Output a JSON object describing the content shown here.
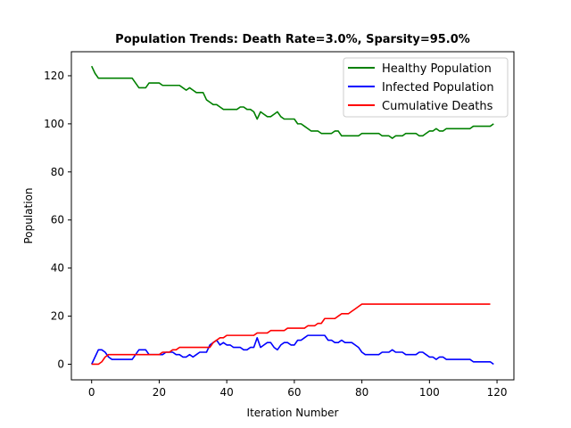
{
  "chart_data": {
    "type": "line",
    "title": "Population Trends: Death Rate=3.0%, Sparsity=95.0%",
    "xlabel": "Iteration Number",
    "ylabel": "Population",
    "xlim": [
      -6,
      125
    ],
    "ylim": [
      -6.5,
      130
    ],
    "xticks": [
      0,
      20,
      40,
      60,
      80,
      100,
      120
    ],
    "yticks": [
      0,
      20,
      40,
      60,
      80,
      100,
      120
    ],
    "grid": false,
    "legend_position": "top-right",
    "series": [
      {
        "name": "Healthy Population",
        "color": "#008000",
        "x": [
          0,
          1,
          2,
          3,
          4,
          5,
          6,
          7,
          8,
          9,
          10,
          11,
          12,
          13,
          14,
          15,
          16,
          17,
          18,
          19,
          20,
          21,
          22,
          23,
          24,
          25,
          26,
          27,
          28,
          29,
          30,
          31,
          32,
          33,
          34,
          35,
          36,
          37,
          38,
          39,
          40,
          41,
          42,
          43,
          44,
          45,
          46,
          47,
          48,
          49,
          50,
          51,
          52,
          53,
          54,
          55,
          56,
          57,
          58,
          59,
          60,
          61,
          62,
          63,
          64,
          65,
          66,
          67,
          68,
          69,
          70,
          71,
          72,
          73,
          74,
          75,
          76,
          77,
          78,
          79,
          80,
          81,
          82,
          83,
          84,
          85,
          86,
          87,
          88,
          89,
          90,
          91,
          92,
          93,
          94,
          95,
          96,
          97,
          98,
          99,
          100,
          101,
          102,
          103,
          104,
          105,
          106,
          107,
          108,
          109,
          110,
          111,
          112,
          113,
          114,
          115,
          116,
          117,
          118,
          119
        ],
        "values": [
          124,
          121,
          119,
          119,
          119,
          119,
          119,
          119,
          119,
          119,
          119,
          119,
          119,
          117,
          115,
          115,
          115,
          117,
          117,
          117,
          117,
          116,
          116,
          116,
          116,
          116,
          116,
          115,
          114,
          115,
          114,
          113,
          113,
          113,
          110,
          109,
          108,
          108,
          107,
          106,
          106,
          106,
          106,
          106,
          107,
          107,
          106,
          106,
          105,
          102,
          105,
          104,
          103,
          103,
          104,
          105,
          103,
          102,
          102,
          102,
          102,
          100,
          100,
          99,
          98,
          97,
          97,
          97,
          96,
          96,
          96,
          96,
          97,
          97,
          95,
          95,
          95,
          95,
          95,
          95,
          96,
          96,
          96,
          96,
          96,
          96,
          95,
          95,
          95,
          94,
          95,
          95,
          95,
          96,
          96,
          96,
          96,
          95,
          95,
          96,
          97,
          97,
          98,
          97,
          97,
          98,
          98,
          98,
          98,
          98,
          98,
          98,
          98,
          99,
          99,
          99,
          99,
          99,
          99,
          100
        ]
      },
      {
        "name": "Infected Population",
        "color": "#0000ff",
        "x": [
          0,
          1,
          2,
          3,
          4,
          5,
          6,
          7,
          8,
          9,
          10,
          11,
          12,
          13,
          14,
          15,
          16,
          17,
          18,
          19,
          20,
          21,
          22,
          23,
          24,
          25,
          26,
          27,
          28,
          29,
          30,
          31,
          32,
          33,
          34,
          35,
          36,
          37,
          38,
          39,
          40,
          41,
          42,
          43,
          44,
          45,
          46,
          47,
          48,
          49,
          50,
          51,
          52,
          53,
          54,
          55,
          56,
          57,
          58,
          59,
          60,
          61,
          62,
          63,
          64,
          65,
          66,
          67,
          68,
          69,
          70,
          71,
          72,
          73,
          74,
          75,
          76,
          77,
          78,
          79,
          80,
          81,
          82,
          83,
          84,
          85,
          86,
          87,
          88,
          89,
          90,
          91,
          92,
          93,
          94,
          95,
          96,
          97,
          98,
          99,
          100,
          101,
          102,
          103,
          104,
          105,
          106,
          107,
          108,
          109,
          110,
          111,
          112,
          113,
          114,
          115,
          116,
          117,
          118,
          119
        ],
        "values": [
          0,
          3,
          6,
          6,
          5,
          3,
          2,
          2,
          2,
          2,
          2,
          2,
          2,
          4,
          6,
          6,
          6,
          4,
          4,
          4,
          4,
          4,
          5,
          5,
          5,
          4,
          4,
          3,
          3,
          4,
          3,
          4,
          5,
          5,
          5,
          8,
          9,
          10,
          8,
          9,
          8,
          8,
          7,
          7,
          7,
          6,
          6,
          7,
          7,
          11,
          7,
          8,
          9,
          9,
          7,
          6,
          8,
          9,
          9,
          8,
          8,
          10,
          10,
          11,
          12,
          12,
          12,
          12,
          12,
          12,
          10,
          10,
          9,
          9,
          10,
          9,
          9,
          9,
          8,
          7,
          5,
          4,
          4,
          4,
          4,
          4,
          5,
          5,
          5,
          6,
          5,
          5,
          5,
          4,
          4,
          4,
          4,
          5,
          5,
          4,
          3,
          3,
          2,
          3,
          3,
          2,
          2,
          2,
          2,
          2,
          2,
          2,
          2,
          1,
          1,
          1,
          1,
          1,
          1,
          0
        ]
      },
      {
        "name": "Cumulative Deaths",
        "color": "#ff0000",
        "x": [
          0,
          1,
          2,
          3,
          4,
          5,
          6,
          7,
          8,
          9,
          10,
          11,
          12,
          13,
          14,
          15,
          16,
          17,
          18,
          19,
          20,
          21,
          22,
          23,
          24,
          25,
          26,
          27,
          28,
          29,
          30,
          31,
          32,
          33,
          34,
          35,
          36,
          37,
          38,
          39,
          40,
          41,
          42,
          43,
          44,
          45,
          46,
          47,
          48,
          49,
          50,
          51,
          52,
          53,
          54,
          55,
          56,
          57,
          58,
          59,
          60,
          61,
          62,
          63,
          64,
          65,
          66,
          67,
          68,
          69,
          70,
          71,
          72,
          73,
          74,
          75,
          76,
          77,
          78,
          79,
          80,
          81,
          82,
          83,
          84,
          85,
          86,
          87,
          88,
          89,
          90,
          91,
          92,
          93,
          94,
          95,
          96,
          97,
          98,
          99,
          100,
          101,
          102,
          103,
          104,
          105,
          106,
          107,
          108,
          109,
          110,
          111,
          112,
          113,
          114,
          115,
          116,
          117,
          118
        ],
        "values": [
          0,
          0,
          0,
          1,
          3,
          4,
          4,
          4,
          4,
          4,
          4,
          4,
          4,
          4,
          4,
          4,
          4,
          4,
          4,
          4,
          4,
          5,
          5,
          5,
          6,
          6,
          7,
          7,
          7,
          7,
          7,
          7,
          7,
          7,
          7,
          7,
          9,
          10,
          11,
          11,
          12,
          12,
          12,
          12,
          12,
          12,
          12,
          12,
          12,
          13,
          13,
          13,
          13,
          14,
          14,
          14,
          14,
          14,
          15,
          15,
          15,
          15,
          15,
          15,
          16,
          16,
          16,
          17,
          17,
          19,
          19,
          19,
          19,
          20,
          21,
          21,
          21,
          22,
          23,
          24,
          25,
          25,
          25,
          25,
          25,
          25,
          25,
          25,
          25,
          25,
          25,
          25,
          25,
          25,
          25,
          25,
          25,
          25,
          25,
          25,
          25,
          25,
          25,
          25,
          25,
          25,
          25,
          25,
          25,
          25,
          25,
          25,
          25,
          25,
          25,
          25,
          25,
          25,
          25
        ]
      }
    ]
  }
}
